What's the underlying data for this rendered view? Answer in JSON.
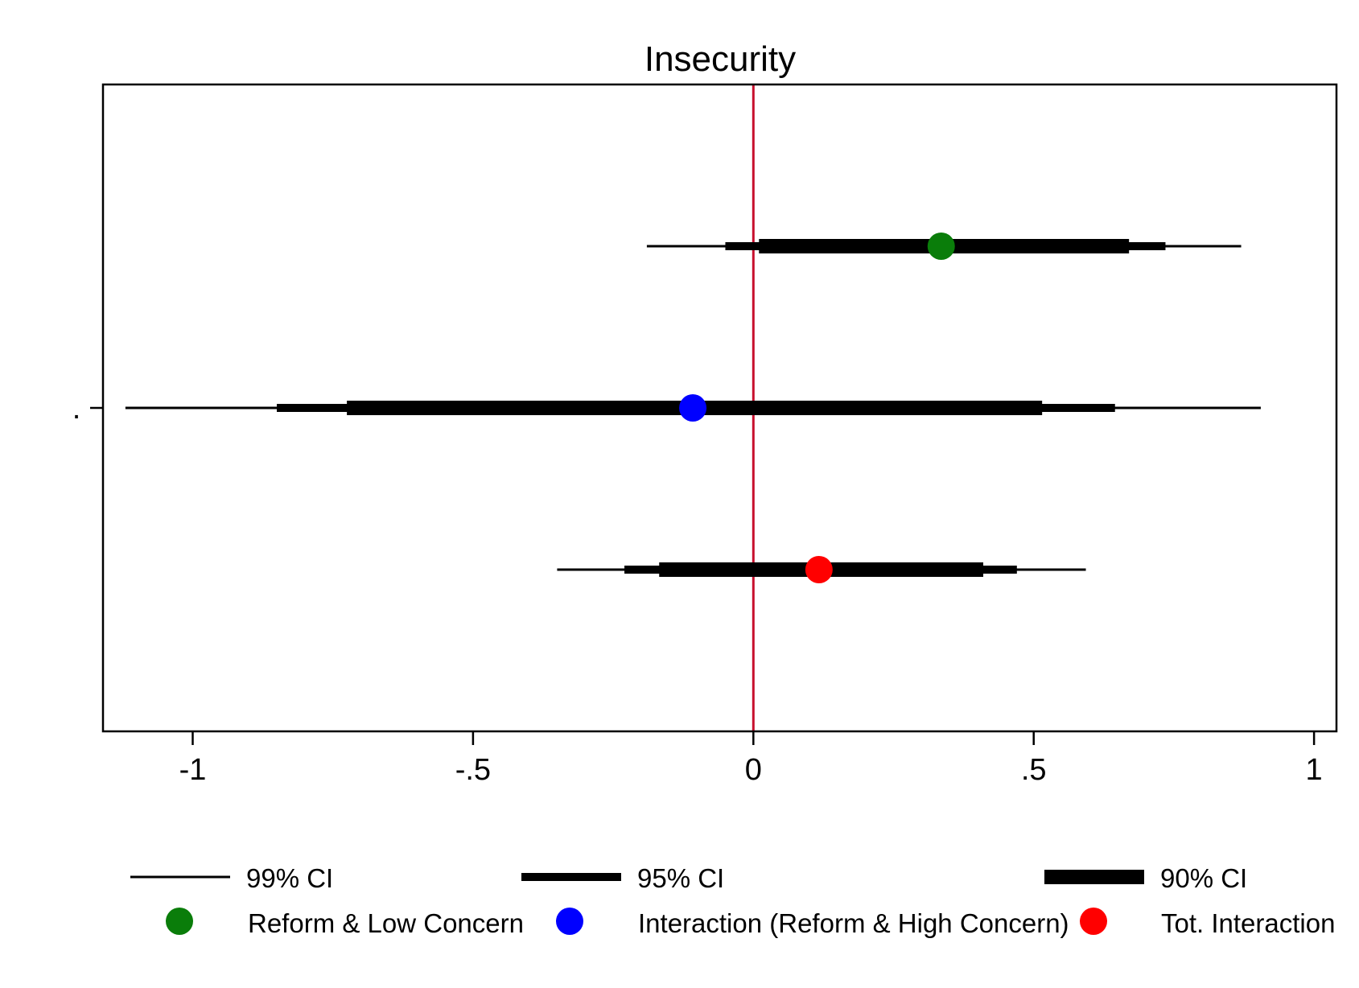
{
  "chart_data": {
    "type": "coefficient-plot",
    "title": "Insecurity",
    "xlabel": "",
    "ylabel": "",
    "xlim": [
      -1.16,
      1.04
    ],
    "x_ticks": [
      {
        "value": -1,
        "label": "-1"
      },
      {
        "value": -0.5,
        "label": "-.5"
      },
      {
        "value": 0,
        "label": "0"
      },
      {
        "value": 0.5,
        "label": ".5"
      },
      {
        "value": 1,
        "label": "1"
      }
    ],
    "y_tick_label": ".",
    "reference_line": {
      "x": 0,
      "color": "#c8102e"
    },
    "grid": false,
    "series": [
      {
        "name": "Reform & Low Concern",
        "color": "#0a7d0a",
        "estimate": 0.335,
        "ci99": [
          -0.19,
          0.87
        ],
        "ci95": [
          -0.05,
          0.735
        ],
        "ci90": [
          0.01,
          0.67
        ]
      },
      {
        "name": "Interaction (Reform & High Concern)",
        "color": "#0000ff",
        "estimate": -0.108,
        "ci99": [
          -1.12,
          0.905
        ],
        "ci95": [
          -0.85,
          0.645
        ],
        "ci90": [
          -0.725,
          0.515
        ]
      },
      {
        "name": "Tot. Interaction",
        "color": "#ff0000",
        "estimate": 0.117,
        "ci99": [
          -0.35,
          0.593
        ],
        "ci95": [
          -0.23,
          0.47
        ],
        "ci90": [
          -0.168,
          0.41
        ]
      }
    ],
    "legend": {
      "position": "bottom",
      "ci_items": [
        {
          "label": "99% CI",
          "key": "ci99"
        },
        {
          "label": "95% CI",
          "key": "ci95"
        },
        {
          "label": "90% CI",
          "key": "ci90"
        }
      ]
    }
  }
}
